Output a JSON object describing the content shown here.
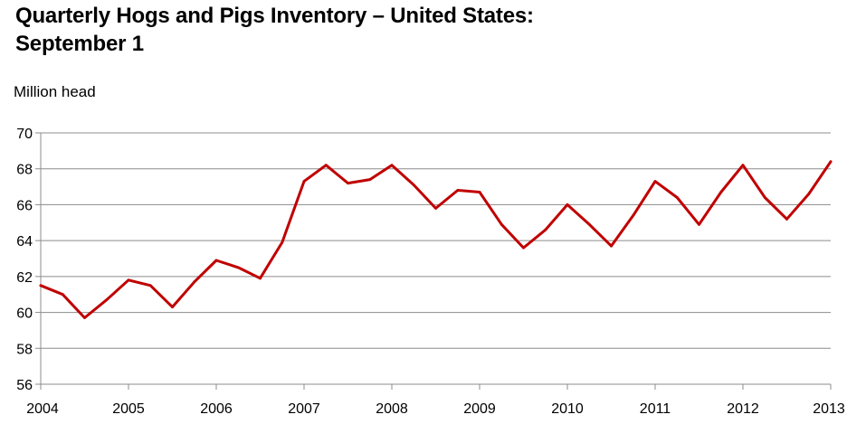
{
  "chart_data": {
    "type": "line",
    "title_line1": "Quarterly Hogs and Pigs Inventory – United States:",
    "title_line2": "September 1",
    "ylabel": "Million head",
    "xlabel": "",
    "ylim": [
      56,
      70
    ],
    "yticks": [
      "56",
      "58",
      "60",
      "62",
      "64",
      "66",
      "68",
      "70"
    ],
    "xlim": [
      2004,
      2013
    ],
    "xticks": [
      "2004",
      "2005",
      "2006",
      "2007",
      "2008",
      "2009",
      "2010",
      "2011",
      "2012",
      "2013"
    ],
    "grid": true,
    "legend": "none",
    "series": [
      {
        "color": "#c00000",
        "x": [
          2004.0,
          2004.25,
          2004.5,
          2004.75,
          2005.0,
          2005.25,
          2005.5,
          2005.75,
          2006.0,
          2006.25,
          2006.5,
          2006.75,
          2007.0,
          2007.25,
          2007.5,
          2007.75,
          2008.0,
          2008.25,
          2008.5,
          2008.75,
          2009.0,
          2009.25,
          2009.5,
          2009.75,
          2010.0,
          2010.25,
          2010.5,
          2010.75,
          2011.0,
          2011.25,
          2011.5,
          2011.75,
          2012.0,
          2012.25,
          2012.5,
          2012.75,
          2013.0
        ],
        "values": [
          61.5,
          61.0,
          59.7,
          60.7,
          61.8,
          61.5,
          60.3,
          61.7,
          62.9,
          62.5,
          61.9,
          63.9,
          67.3,
          68.2,
          67.2,
          67.4,
          68.2,
          67.1,
          65.8,
          66.8,
          66.7,
          64.9,
          63.6,
          64.6,
          66.0,
          64.9,
          63.7,
          65.4,
          67.3,
          66.4,
          64.9,
          66.7,
          68.2,
          66.4,
          65.2,
          66.6,
          68.4
        ]
      }
    ]
  }
}
